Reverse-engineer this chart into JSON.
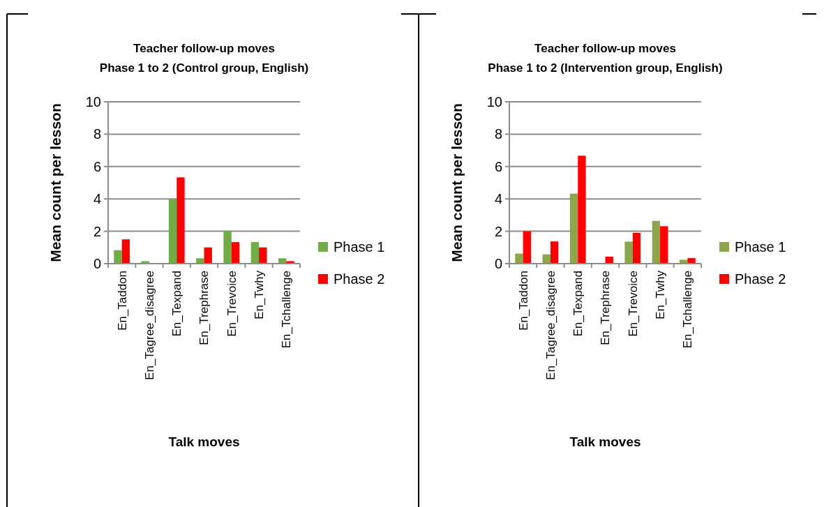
{
  "chart_data": [
    {
      "type": "bar",
      "title": "Teacher follow-up moves\nPhase 1 to 2 (Control group, English)",
      "xlabel": "Talk moves",
      "ylabel": "Mean count per lesson",
      "categories": [
        "En_Taddon",
        "En_Tagree_disagree",
        "En_Texpand",
        "En_Trephrase",
        "En_Trevoice",
        "En_Twhy",
        "En_Tchallenge"
      ],
      "series": [
        {
          "name": "Phase 1",
          "color": "#70ad47",
          "values": [
            0.83,
            0.15,
            4.0,
            0.33,
            2.0,
            1.33,
            0.33
          ]
        },
        {
          "name": "Phase 2",
          "color": "#ff0000",
          "values": [
            1.5,
            0,
            5.33,
            1.0,
            1.33,
            1.0,
            0.15
          ]
        }
      ],
      "ylim": [
        0,
        10
      ],
      "yticks": [
        0,
        2,
        4,
        6,
        8,
        10
      ],
      "grid": "y",
      "legend": "right"
    },
    {
      "type": "bar",
      "title": "Teacher follow-up moves\nPhase 1 to 2 (Intervention group, English)",
      "xlabel": "Talk moves",
      "ylabel": "Mean count per lesson",
      "categories": [
        "En_Taddon",
        "En_Tagree_disagree",
        "En_Texpand",
        "En_Trephrase",
        "En_Trevoice",
        "En_Twhy",
        "En_Tchallenge"
      ],
      "series": [
        {
          "name": "Phase 1",
          "color": "#8ea64b",
          "values": [
            0.62,
            0.57,
            4.33,
            0,
            1.36,
            2.64,
            0.24
          ]
        },
        {
          "name": "Phase 2",
          "color": "#ff0000",
          "values": [
            2.0,
            1.37,
            6.67,
            0.43,
            1.9,
            2.31,
            0.34
          ]
        }
      ],
      "ylim": [
        0,
        10
      ],
      "yticks": [
        0,
        2,
        4,
        6,
        8,
        10
      ],
      "grid": "y",
      "legend": "right"
    }
  ]
}
